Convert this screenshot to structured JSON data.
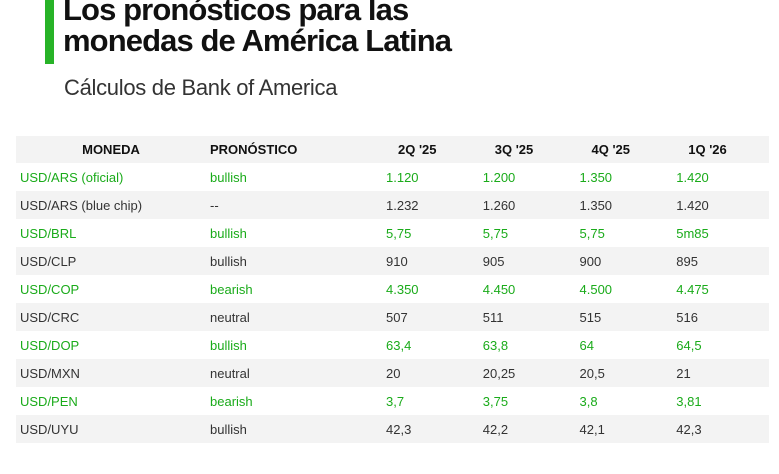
{
  "header": {
    "title_line1": "Los pronósticos para las",
    "title_line2": "monedas de América Latina",
    "subtitle": "Cálculos de Bank of America"
  },
  "colors": {
    "accent": "#27b327",
    "green_text": "#1aab1a",
    "stripe": "#f3f3f3"
  },
  "table": {
    "columns": [
      "MONEDA",
      "PRONÓSTICO",
      "2Q '25",
      "3Q '25",
      "4Q '25",
      "1Q '26"
    ],
    "rows": [
      {
        "highlight": true,
        "cells": [
          "USD/ARS (oficial)",
          "bullish",
          "1.120",
          "1.200",
          "1.350",
          "1.420"
        ]
      },
      {
        "highlight": false,
        "cells": [
          "USD/ARS (blue chip)",
          "--",
          "1.232",
          "1.260",
          "1.350",
          "1.420"
        ]
      },
      {
        "highlight": true,
        "cells": [
          "USD/BRL",
          "bullish",
          "5,75",
          "5,75",
          "5,75",
          "5m85"
        ]
      },
      {
        "highlight": false,
        "cells": [
          "USD/CLP",
          "bullish",
          "910",
          "905",
          "900",
          "895"
        ]
      },
      {
        "highlight": true,
        "cells": [
          "USD/COP",
          "bearish",
          "4.350",
          "4.450",
          "4.500",
          "4.475"
        ]
      },
      {
        "highlight": false,
        "cells": [
          "USD/CRC",
          "neutral",
          "507",
          "511",
          "515",
          "516"
        ]
      },
      {
        "highlight": true,
        "cells": [
          "USD/DOP",
          "bullish",
          "63,4",
          "63,8",
          "64",
          "64,5"
        ]
      },
      {
        "highlight": false,
        "cells": [
          "USD/MXN",
          "neutral",
          "20",
          "20,25",
          "20,5",
          "21"
        ]
      },
      {
        "highlight": true,
        "cells": [
          "USD/PEN",
          "bearish",
          "3,7",
          "3,75",
          "3,8",
          "3,81"
        ]
      },
      {
        "highlight": false,
        "cells": [
          "USD/UYU",
          "bullish",
          "42,3",
          "42,2",
          "42,1",
          "42,3"
        ]
      }
    ]
  }
}
